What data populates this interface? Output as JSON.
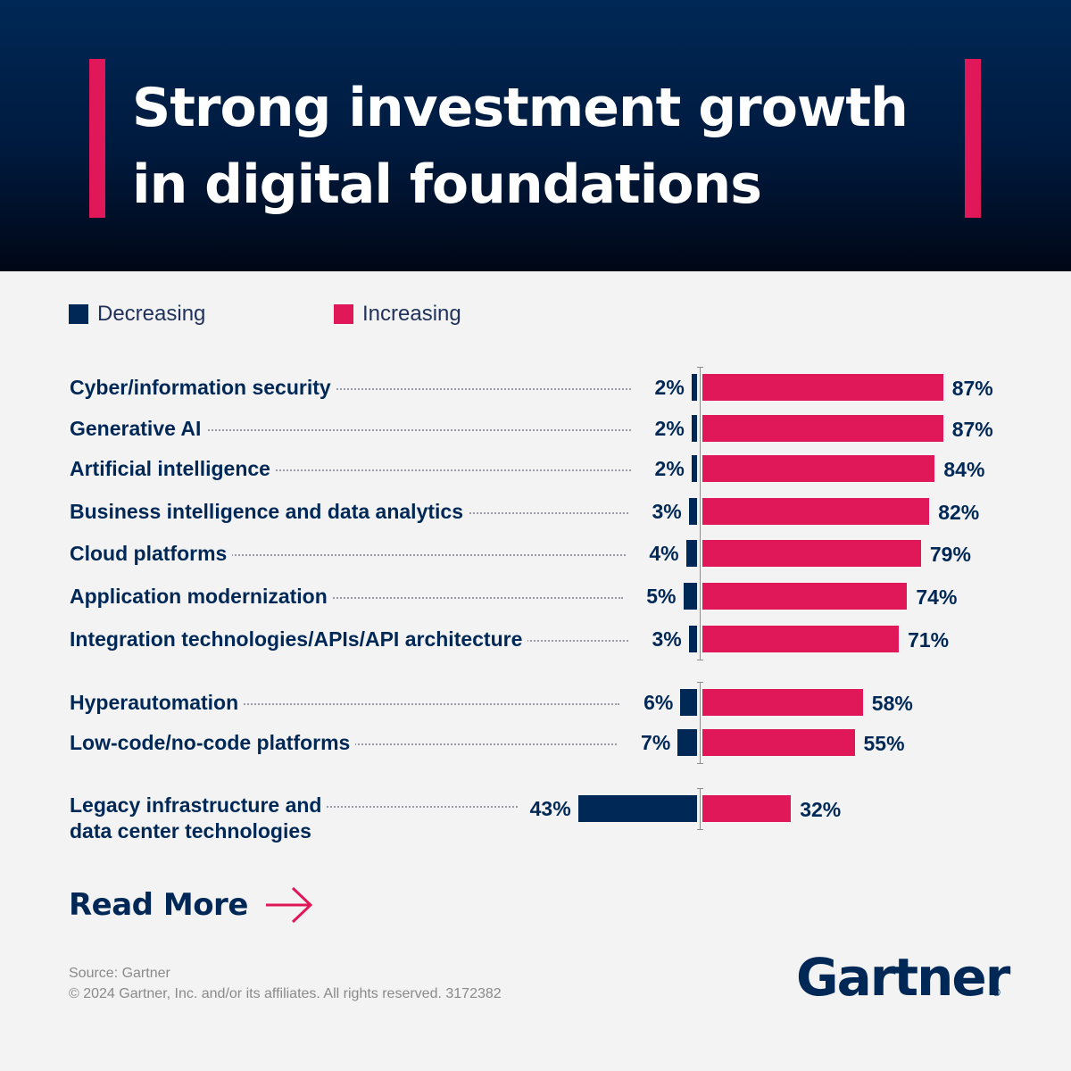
{
  "header": {
    "title": "Strong investment growth in digital foundations"
  },
  "legend": {
    "decreasing": "Decreasing",
    "increasing": "Increasing"
  },
  "chart_data": {
    "type": "bar",
    "orientation": "diverging-horizontal",
    "title": "Strong investment growth in digital foundations",
    "categories": [
      "Cyber/information security",
      "Generative AI",
      "Artificial intelligence",
      "Business intelligence and data analytics",
      "Cloud platforms",
      "Application modernization",
      "Integration technologies/APIs/API architecture",
      "Hyperautomation",
      "Low-code/no-code platforms",
      "Legacy infrastructure and data center technologies"
    ],
    "series": [
      {
        "name": "Decreasing",
        "color": "#002856",
        "values": [
          2,
          2,
          2,
          3,
          4,
          5,
          3,
          6,
          7,
          43
        ]
      },
      {
        "name": "Increasing",
        "color": "#e0185a",
        "values": [
          87,
          87,
          84,
          82,
          79,
          74,
          71,
          58,
          55,
          32
        ]
      }
    ],
    "unit": "%",
    "labels": [
      {
        "category": "Cyber/information security",
        "decreasing": "2%",
        "increasing": "87%"
      },
      {
        "category": "Generative AI",
        "decreasing": "2%",
        "increasing": "87%"
      },
      {
        "category": "Artificial intelligence",
        "decreasing": "2%",
        "increasing": "84%"
      },
      {
        "category": "Business intelligence and data analytics",
        "decreasing": "3%",
        "increasing": "82%"
      },
      {
        "category": "Cloud platforms",
        "decreasing": "4%",
        "increasing": "79%"
      },
      {
        "category": "Application modernization",
        "decreasing": "5%",
        "increasing": "74%"
      },
      {
        "category": "Integration technologies/APIs/API architecture",
        "decreasing": "3%",
        "increasing": "71%"
      },
      {
        "category": "Hyperautomation",
        "decreasing": "6%",
        "increasing": "58%"
      },
      {
        "category": "Low-code/no-code platforms",
        "decreasing": "7%",
        "increasing": "55%"
      },
      {
        "category": "Legacy infrastructure and data center technologies",
        "decreasing": "43%",
        "increasing": "32%"
      }
    ],
    "label_lines": [
      [
        "Cyber/information security"
      ],
      [
        "Generative AI"
      ],
      [
        "Artificial intelligence"
      ],
      [
        "Business intelligence and data analytics"
      ],
      [
        "Cloud platforms"
      ],
      [
        "Application modernization"
      ],
      [
        "Integration technologies/APIs/API architecture"
      ],
      [
        "Hyperautomation"
      ],
      [
        "Low-code/no-code platforms"
      ],
      [
        "Legacy infrastructure and",
        "data center technologies"
      ]
    ],
    "groups": [
      [
        0,
        1,
        2,
        3,
        4,
        5,
        6
      ],
      [
        7,
        8
      ],
      [
        9
      ]
    ]
  },
  "cta": {
    "label": "Read More"
  },
  "footer": {
    "source": "Source: Gartner",
    "copyright": "© 2024 Gartner, Inc. and/or its affiliates. All rights reserved. 3172382",
    "logo": "Gartner",
    "registered": "®"
  },
  "colors": {
    "navy": "#002856",
    "accent": "#e0185a",
    "background": "#f3f3f3"
  }
}
